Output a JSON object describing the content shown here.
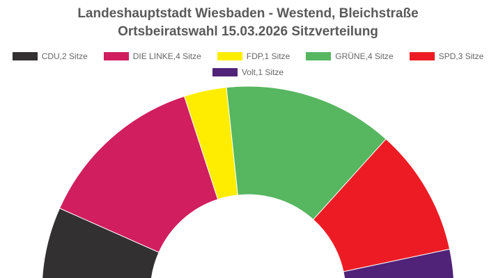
{
  "chart_data": {
    "type": "pie",
    "subtype": "parliament-semicircle",
    "title": "Landeshauptstadt Wiesbaden - Westend, Bleichstraße",
    "subtitle": "Ortsbeiratswahl 15.03.2026 Sitzverteilung",
    "legend_position": "top",
    "slices": [
      {
        "label": "CDU,2 Sitze",
        "party": "CDU",
        "seats": 2,
        "color": "#323031"
      },
      {
        "label": "DIE LINKE,4 Sitze",
        "party": "DIE LINKE",
        "seats": 4,
        "color": "#d01e5f"
      },
      {
        "label": "FDP,1 Sitze",
        "party": "FDP",
        "seats": 1,
        "color": "#ffed00"
      },
      {
        "label": "GRÜNE,4 Sitze",
        "party": "GRÜNE",
        "seats": 4,
        "color": "#57b660"
      },
      {
        "label": "SPD,3 Sitze",
        "party": "SPD",
        "seats": 3,
        "color": "#ed1c24"
      },
      {
        "label": "Volt,1 Sitze",
        "party": "Volt",
        "seats": 1,
        "color": "#502379"
      }
    ]
  }
}
